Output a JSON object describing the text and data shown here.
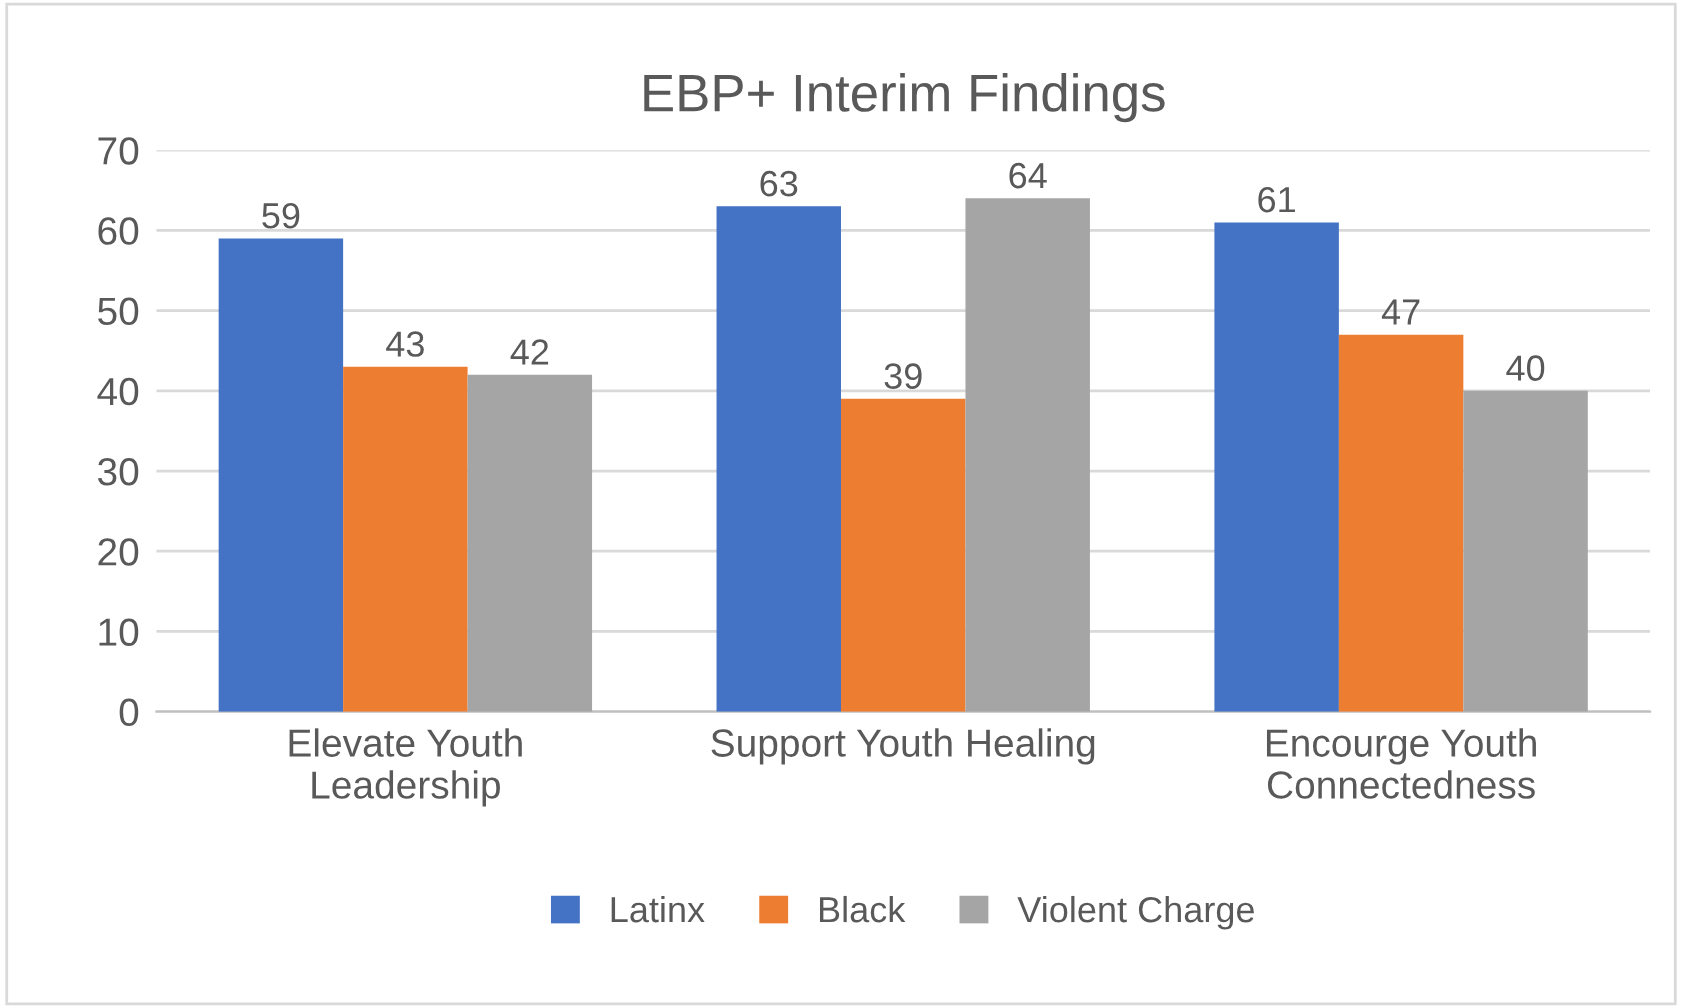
{
  "chart_data": {
    "type": "bar",
    "title": "EBP+ Interim Findings",
    "categories": [
      "Elevate Youth Leadership",
      "Support Youth Healing",
      "Encourge Youth Connectedness"
    ],
    "series": [
      {
        "name": "Latinx",
        "color": "#4472c4",
        "values": [
          59,
          63,
          61
        ]
      },
      {
        "name": "Black",
        "color": "#ed7d31",
        "values": [
          43,
          39,
          47
        ]
      },
      {
        "name": "Violent Charge",
        "color": "#a5a5a5",
        "values": [
          42,
          64,
          40
        ]
      }
    ],
    "ylim": [
      0,
      70
    ],
    "yticks": [
      0,
      10,
      20,
      30,
      40,
      50,
      60,
      70
    ],
    "grid": "y",
    "legend": "bottom",
    "data_labels": true
  }
}
